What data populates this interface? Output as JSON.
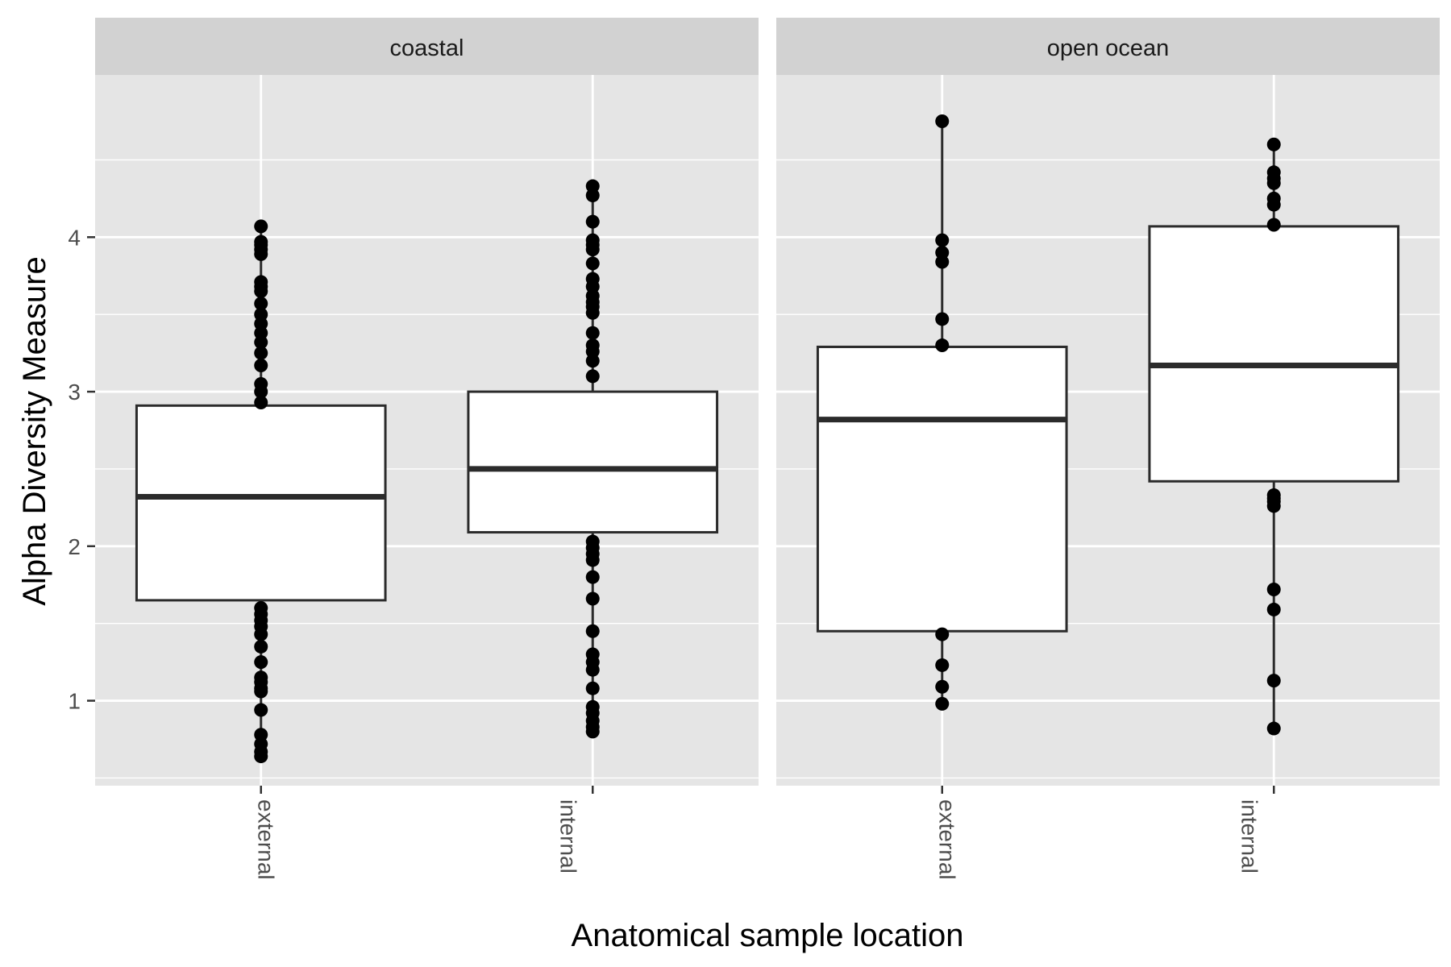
{
  "chart_data": {
    "type": "boxplot",
    "title": "",
    "xlabel": "Anatomical sample location",
    "ylabel": "Alpha Diversity Measure",
    "ylim": [
      0.45,
      5.05
    ],
    "yticks": [
      1,
      2,
      3,
      4
    ],
    "grid": true,
    "legend": "none",
    "colors": {
      "panel_bg": "#e5e5e5",
      "strip_bg": "#d2d2d2",
      "grid": "#ffffff",
      "box_fill": "#ffffff",
      "box_stroke": "#2b2b2b",
      "point": "#000000",
      "text": "#4d4d4d",
      "title_text": "#000000"
    },
    "facets": [
      {
        "name": "coastal",
        "categories": [
          {
            "name": "external",
            "q1": 1.65,
            "median": 2.32,
            "q3": 2.91,
            "whisker_low": 0.64,
            "whisker_high": 4.07,
            "points": [
              4.07,
              3.97,
              3.95,
              3.92,
              3.89,
              3.71,
              3.68,
              3.65,
              3.57,
              3.5,
              3.44,
              3.38,
              3.32,
              3.25,
              3.17,
              3.05,
              3.0,
              2.93,
              1.6,
              1.56,
              1.52,
              1.48,
              1.43,
              1.35,
              1.25,
              1.15,
              1.12,
              1.08,
              1.06,
              0.94,
              0.78,
              0.72,
              0.67,
              0.64
            ]
          },
          {
            "name": "internal",
            "q1": 2.09,
            "median": 2.5,
            "q3": 3.0,
            "whisker_low": 0.8,
            "whisker_high": 4.33,
            "points": [
              4.33,
              4.27,
              4.1,
              3.98,
              3.95,
              3.92,
              3.83,
              3.73,
              3.68,
              3.62,
              3.58,
              3.55,
              3.51,
              3.38,
              3.3,
              3.26,
              3.2,
              3.1,
              2.03,
              1.99,
              1.95,
              1.91,
              1.8,
              1.66,
              1.45,
              1.3,
              1.25,
              1.2,
              1.08,
              0.96,
              0.92,
              0.87,
              0.83,
              0.8
            ]
          }
        ]
      },
      {
        "name": "open ocean",
        "categories": [
          {
            "name": "external",
            "q1": 1.45,
            "median": 2.82,
            "q3": 3.29,
            "whisker_low": 0.98,
            "whisker_high": 4.75,
            "points": [
              4.75,
              3.98,
              3.9,
              3.84,
              3.47,
              3.3,
              1.43,
              1.23,
              1.09,
              0.98
            ]
          },
          {
            "name": "internal",
            "q1": 2.42,
            "median": 3.17,
            "q3": 4.07,
            "whisker_low": 0.82,
            "whisker_high": 4.6,
            "points": [
              4.6,
              4.42,
              4.38,
              4.35,
              4.25,
              4.21,
              4.08,
              2.33,
              2.31,
              2.29,
              2.26,
              1.72,
              1.59,
              1.13,
              0.82
            ]
          }
        ]
      }
    ]
  }
}
